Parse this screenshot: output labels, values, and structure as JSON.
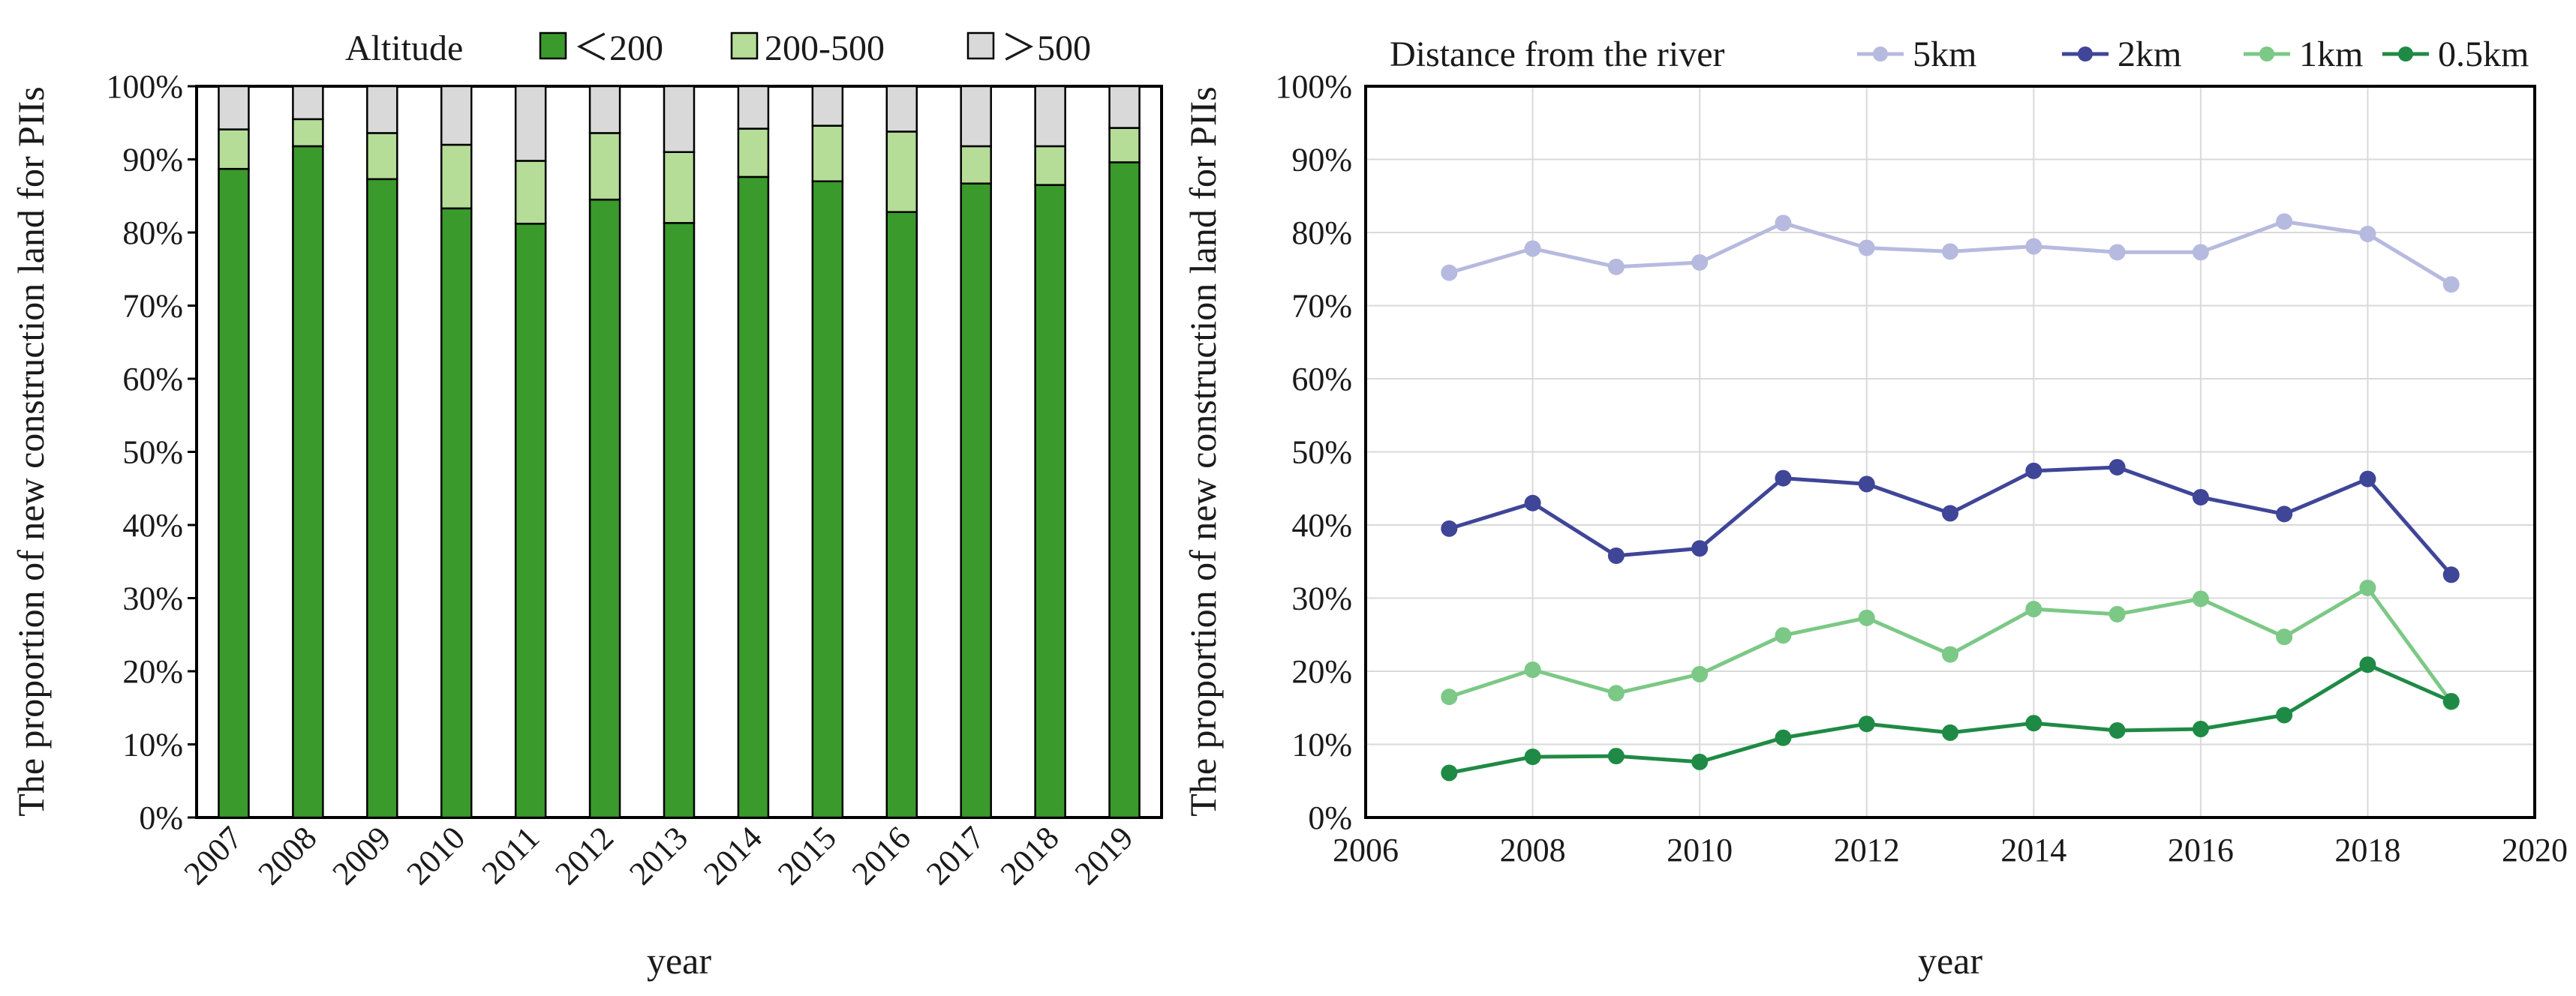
{
  "chart_data": [
    {
      "type": "bar",
      "stacked": true,
      "percent": true,
      "title": "",
      "ylabel": "The proportion of new construction land for PIIs",
      "xlabel": "year",
      "ylim": [
        0,
        100
      ],
      "yticks": [
        "0%",
        "10%",
        "20%",
        "30%",
        "40%",
        "50%",
        "60%",
        "70%",
        "80%",
        "90%",
        "100%"
      ],
      "categories": [
        "2007",
        "2008",
        "2009",
        "2010",
        "2011",
        "2012",
        "2013",
        "2014",
        "2015",
        "2016",
        "2017",
        "2018",
        "2019"
      ],
      "legend_title": "Altitude",
      "legend_position": "top",
      "series": [
        {
          "name": "＜200",
          "color": "#3a9a2c",
          "values": [
            88.7,
            91.8,
            87.3,
            83.3,
            81.2,
            84.5,
            81.3,
            87.6,
            87.0,
            82.8,
            86.7,
            86.5,
            89.6
          ]
        },
        {
          "name": "200-500",
          "color": "#b5dd97",
          "values": [
            5.4,
            3.7,
            6.3,
            8.7,
            8.6,
            9.1,
            9.7,
            6.6,
            7.6,
            11.0,
            5.1,
            5.3,
            4.7
          ]
        },
        {
          "name": "＞500",
          "color": "#d9d9d9",
          "values": [
            5.9,
            4.5,
            6.4,
            8.0,
            10.2,
            6.4,
            9.0,
            5.8,
            5.4,
            6.2,
            8.2,
            8.2,
            5.7
          ]
        }
      ]
    },
    {
      "type": "line",
      "title": "",
      "ylabel": "The proportion of new construction land for PIIs",
      "xlabel": "year",
      "xlim": [
        2006,
        2020
      ],
      "ylim": [
        0,
        100
      ],
      "xticks": [
        "2006",
        "2008",
        "2010",
        "2012",
        "2014",
        "2016",
        "2018",
        "2020"
      ],
      "yticks": [
        "0%",
        "10%",
        "20%",
        "30%",
        "40%",
        "50%",
        "60%",
        "70%",
        "80%",
        "90%",
        "100%"
      ],
      "legend_title": "Distance from the river",
      "legend_position": "top",
      "x": [
        2007,
        2008,
        2009,
        2010,
        2011,
        2012,
        2013,
        2014,
        2015,
        2016,
        2017,
        2018,
        2019
      ],
      "series": [
        {
          "name": "5km",
          "color": "#b7badf",
          "values": [
            74.5,
            77.8,
            75.3,
            75.9,
            81.3,
            77.9,
            77.4,
            78.1,
            77.3,
            77.3,
            81.5,
            79.8,
            72.9
          ]
        },
        {
          "name": "2km",
          "color": "#3f4597",
          "values": [
            39.5,
            43.0,
            35.8,
            36.8,
            46.4,
            45.6,
            41.6,
            47.4,
            47.9,
            43.8,
            41.5,
            46.3,
            33.2
          ]
        },
        {
          "name": "1km",
          "color": "#7cc886",
          "values": [
            16.5,
            20.2,
            17.0,
            19.6,
            24.9,
            27.3,
            22.3,
            28.5,
            27.8,
            29.9,
            24.7,
            31.4,
            15.8
          ]
        },
        {
          "name": "0.5km",
          "color": "#1f8a45",
          "values": [
            6.1,
            8.3,
            8.4,
            7.6,
            10.9,
            12.8,
            11.6,
            12.9,
            11.9,
            12.1,
            14.0,
            20.9,
            15.9
          ]
        }
      ]
    }
  ]
}
